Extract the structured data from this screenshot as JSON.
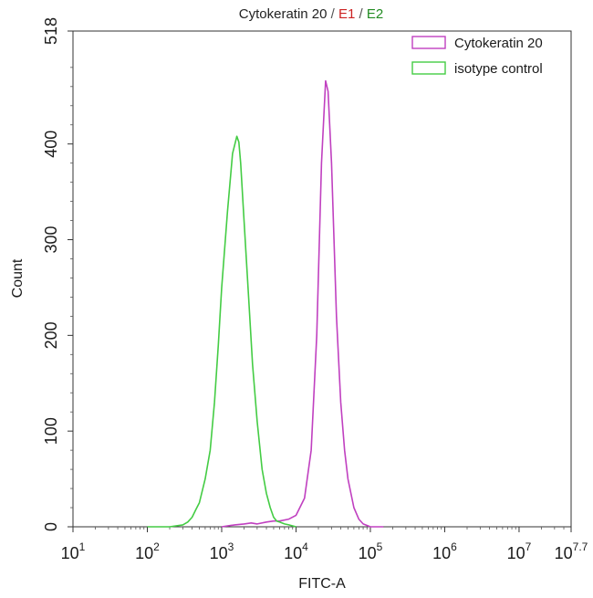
{
  "chart_data": {
    "type": "line",
    "title_parts": [
      {
        "text": "Cytokeratin 20",
        "color": "#222222"
      },
      {
        "text": " / ",
        "color": "#555555"
      },
      {
        "text": "E1",
        "color": "#cc2222"
      },
      {
        "text": " / ",
        "color": "#555555"
      },
      {
        "text": "E2",
        "color": "#228B22"
      }
    ],
    "xlabel": "FITC-A",
    "ylabel": "Count",
    "x_scale": "log",
    "xlim": [
      10,
      50118723
    ],
    "ylim": [
      0,
      518
    ],
    "x_ticks": [
      {
        "base": "10",
        "exp": "1"
      },
      {
        "base": "10",
        "exp": "2"
      },
      {
        "base": "10",
        "exp": "3"
      },
      {
        "base": "10",
        "exp": "4"
      },
      {
        "base": "10",
        "exp": "5"
      },
      {
        "base": "10",
        "exp": "6"
      },
      {
        "base": "10",
        "exp": "7"
      },
      {
        "base": "10",
        "exp": "7.7"
      }
    ],
    "y_ticks": [
      "0",
      "100",
      "200",
      "300",
      "400",
      "518"
    ],
    "y_tick_values": [
      0,
      100,
      200,
      300,
      400,
      518
    ],
    "legend_position": "top-right",
    "grid": false,
    "series": [
      {
        "name": "Cytokeratin 20",
        "color": "#c040c0",
        "x": [
          1000,
          1500,
          2000,
          2500,
          3000,
          4000,
          5000,
          6000,
          8000,
          10000,
          13000,
          16000,
          19000,
          22000,
          25000,
          27000,
          30000,
          35000,
          40000,
          45000,
          50000,
          60000,
          70000,
          80000,
          100000,
          150000
        ],
        "y": [
          0,
          2,
          3,
          4,
          3,
          5,
          6,
          6,
          8,
          12,
          30,
          80,
          200,
          380,
          466,
          455,
          380,
          220,
          130,
          80,
          50,
          20,
          8,
          3,
          0,
          0
        ]
      },
      {
        "name": "isotype control",
        "color": "#44cc44",
        "x": [
          100,
          200,
          300,
          350,
          400,
          450,
          500,
          600,
          700,
          800,
          900,
          1000,
          1200,
          1400,
          1600,
          1700,
          1800,
          2000,
          2300,
          2600,
          3000,
          3500,
          4000,
          4500,
          5000,
          5500,
          6000,
          7000,
          8000,
          9000,
          10000
        ],
        "y": [
          0,
          0,
          2,
          5,
          10,
          18,
          25,
          50,
          80,
          130,
          190,
          250,
          330,
          390,
          408,
          402,
          380,
          320,
          240,
          170,
          110,
          60,
          35,
          20,
          10,
          6,
          5,
          3,
          2,
          1,
          0
        ]
      }
    ]
  }
}
